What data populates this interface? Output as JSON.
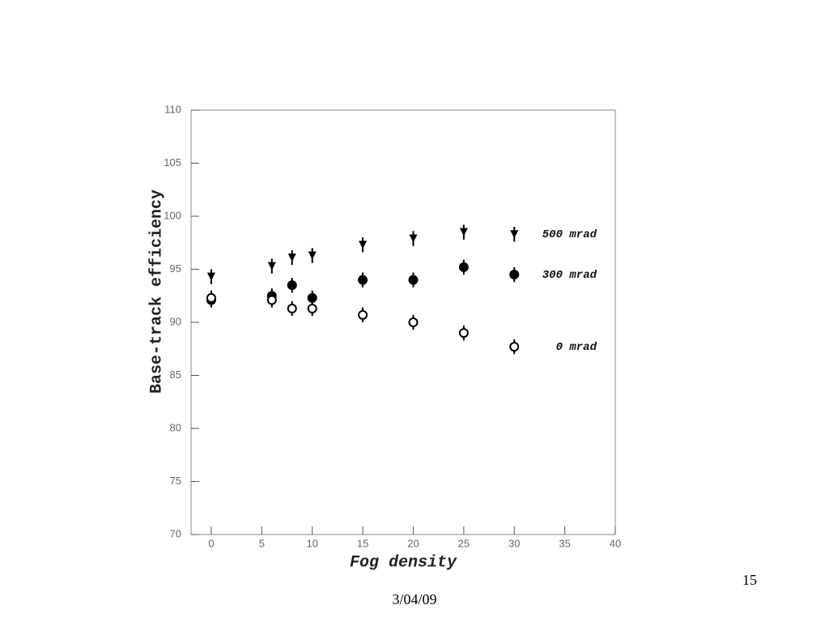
{
  "chart_data": {
    "type": "scatter",
    "x_label": "Fog density",
    "y_label": "Base-track efficiency",
    "x": [
      0,
      6,
      8,
      10,
      15,
      20,
      25,
      30
    ],
    "series": [
      {
        "name": "500 mrad",
        "color": "#000000",
        "marker": "triangle-down",
        "values": [
          94.3,
          95.3,
          96.1,
          96.3,
          97.3,
          97.9,
          98.5,
          98.3
        ],
        "errors": [
          0.7,
          0.7,
          0.7,
          0.7,
          0.7,
          0.7,
          0.7,
          0.7
        ]
      },
      {
        "name": "300 mrad",
        "color": "#000000",
        "marker": "circle",
        "values": [
          92.1,
          92.5,
          93.5,
          92.3,
          94.0,
          94.0,
          95.2,
          94.5
        ],
        "errors": [
          0.7,
          0.7,
          0.7,
          0.7,
          0.7,
          0.7,
          0.7,
          0.7
        ]
      },
      {
        "name": "0 mrad",
        "color": "#000000",
        "marker": "circle-open",
        "values": [
          92.3,
          92.1,
          91.3,
          91.3,
          90.7,
          90.0,
          89.0,
          87.7
        ],
        "errors": [
          0.7,
          0.7,
          0.7,
          0.7,
          0.7,
          0.7,
          0.7,
          0.7
        ]
      }
    ],
    "xlim": [
      -2,
      40
    ],
    "xticks": [
      0,
      5,
      10,
      15,
      20,
      25,
      30,
      35,
      40
    ],
    "ylim": [
      70,
      110
    ],
    "yticks": [
      70,
      75,
      80,
      85,
      90,
      95,
      100,
      105,
      110
    ]
  },
  "footer": {
    "date": "3/04/09",
    "page_number": "15"
  }
}
